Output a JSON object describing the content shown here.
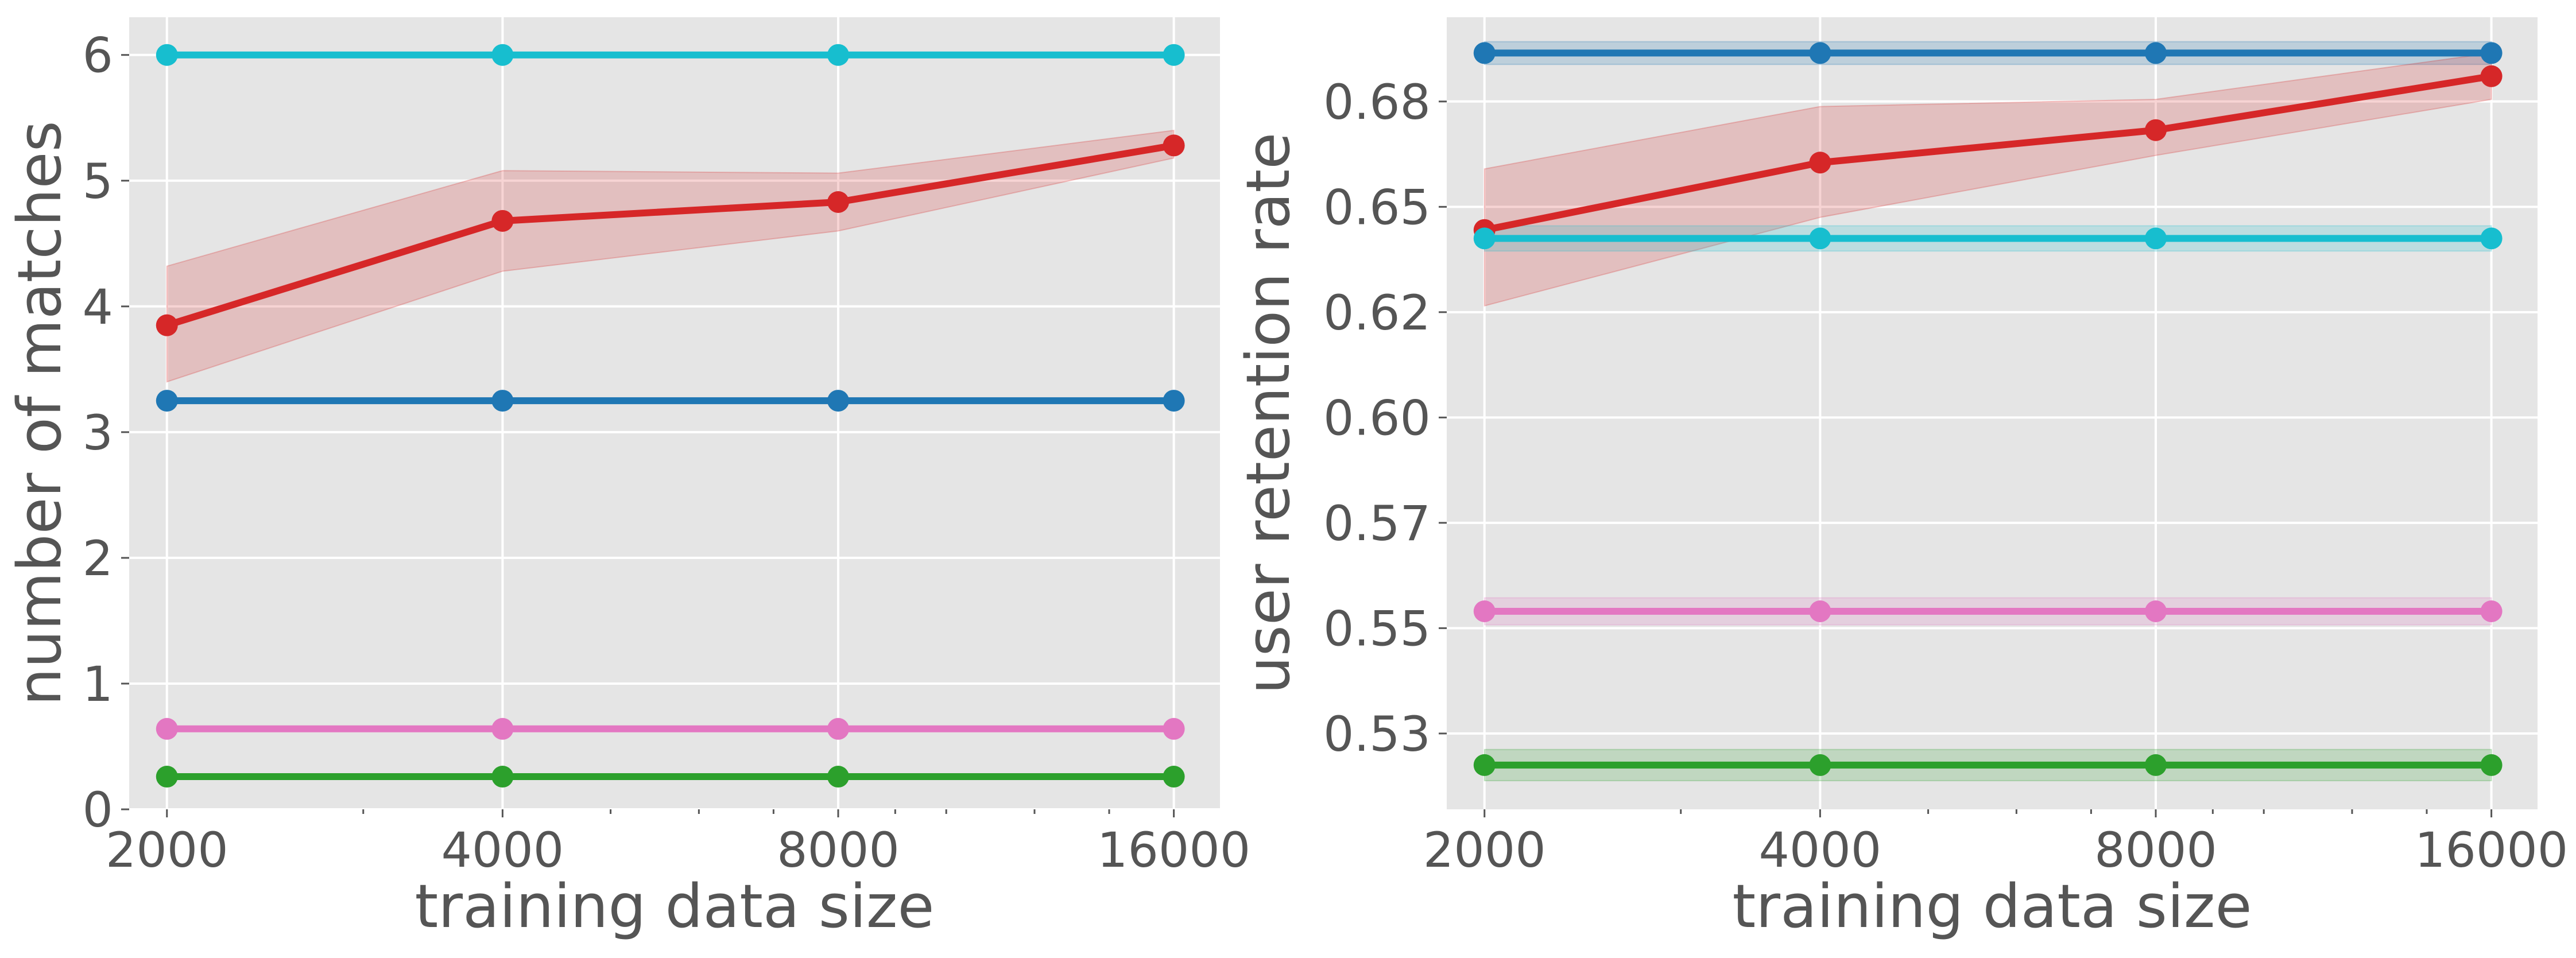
{
  "chart_data": [
    {
      "type": "line",
      "style": "ggplot",
      "grid": true,
      "xscale": "log2",
      "xlabel": "training data size",
      "ylabel": "number of matches",
      "x": [
        2000,
        4000,
        8000,
        16000
      ],
      "xticks": [
        "2000",
        "4000",
        "8000",
        "16000"
      ],
      "xlim": [
        1850,
        17600
      ],
      "ylim": [
        0,
        6.3
      ],
      "yticks": [
        "0",
        "1",
        "2",
        "3",
        "4",
        "5",
        "6"
      ],
      "series": [
        {
          "color": "#17becf",
          "values": [
            6.0,
            6.0,
            6.0,
            6.0
          ]
        },
        {
          "color": "#d62728",
          "values": [
            3.85,
            4.68,
            4.83,
            5.28
          ],
          "band_lower": [
            3.4,
            4.28,
            4.6,
            5.18
          ],
          "band_upper": [
            4.32,
            5.08,
            5.06,
            5.4
          ]
        },
        {
          "color": "#1f77b4",
          "values": [
            3.25,
            3.25,
            3.25,
            3.25
          ]
        },
        {
          "color": "#e377c2",
          "values": [
            0.64,
            0.64,
            0.64,
            0.64
          ]
        },
        {
          "color": "#2ca02c",
          "values": [
            0.26,
            0.26,
            0.26,
            0.26
          ]
        }
      ]
    },
    {
      "type": "line",
      "style": "ggplot",
      "grid": true,
      "xscale": "log2",
      "xlabel": "training data size",
      "ylabel": "user retention rate",
      "x": [
        2000,
        4000,
        8000,
        16000
      ],
      "xticks": [
        "2000",
        "4000",
        "8000",
        "16000"
      ],
      "xlim": [
        1850,
        17600
      ],
      "ylim": [
        0.507,
        0.695
      ],
      "yticks": [
        "0.53",
        "0.55",
        "0.57",
        "0.60",
        "0.62",
        "0.65",
        "0.68"
      ],
      "ytick_values": [
        0.525,
        0.55,
        0.575,
        0.6,
        0.625,
        0.65,
        0.675
      ],
      "series": [
        {
          "color": "#1f77b4",
          "values": [
            0.6865,
            0.6865,
            0.6865,
            0.6865
          ],
          "band_lower": [
            0.6838,
            0.6838,
            0.6838,
            0.6838
          ],
          "band_upper": [
            0.6892,
            0.6892,
            0.6892,
            0.6892
          ]
        },
        {
          "color": "#d62728",
          "values": [
            0.6445,
            0.6605,
            0.6682,
            0.681
          ],
          "band_lower": [
            0.6265,
            0.6475,
            0.6622,
            0.6755
          ],
          "band_upper": [
            0.659,
            0.6738,
            0.6755,
            0.6865
          ]
        },
        {
          "color": "#17becf",
          "values": [
            0.6425,
            0.6425,
            0.6425,
            0.6425
          ],
          "band_lower": [
            0.6395,
            0.6395,
            0.6395,
            0.6395
          ],
          "band_upper": [
            0.6455,
            0.6455,
            0.6455,
            0.6455
          ]
        },
        {
          "color": "#e377c2",
          "values": [
            0.554,
            0.554,
            0.554,
            0.554
          ],
          "band_lower": [
            0.5508,
            0.5508,
            0.5508,
            0.5508
          ],
          "band_upper": [
            0.5572,
            0.5572,
            0.5572,
            0.5572
          ]
        },
        {
          "color": "#2ca02c",
          "values": [
            0.5175,
            0.5175,
            0.5175,
            0.5175
          ],
          "band_lower": [
            0.5138,
            0.5138,
            0.5138,
            0.5138
          ],
          "band_upper": [
            0.5212,
            0.5212,
            0.5212,
            0.5212
          ]
        }
      ]
    }
  ]
}
